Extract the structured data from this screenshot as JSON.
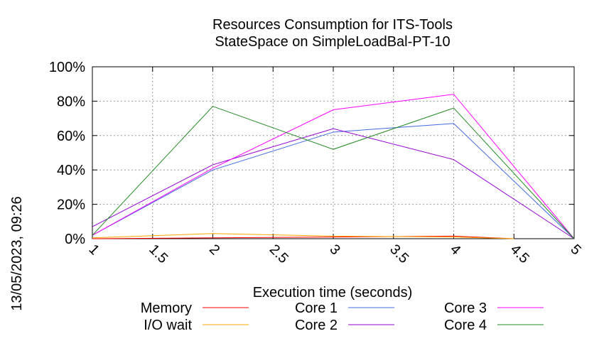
{
  "chart_data": {
    "type": "line",
    "title_lines": [
      "Resources Consumption for ITS-Tools",
      "StateSpace on SimpleLoadBal-PT-10"
    ],
    "xlabel": "Execution time (seconds)",
    "ylabel": "",
    "side_label": "13/05/2023, 09:26",
    "xlim": [
      1,
      5
    ],
    "ylim": [
      0,
      100
    ],
    "x_ticks": [
      {
        "value": 1,
        "label": "1"
      },
      {
        "value": 1.5,
        "label": "1.5"
      },
      {
        "value": 2,
        "label": "2"
      },
      {
        "value": 2.5,
        "label": "2.5"
      },
      {
        "value": 3,
        "label": "3"
      },
      {
        "value": 3.5,
        "label": "3.5"
      },
      {
        "value": 4,
        "label": "4"
      },
      {
        "value": 4.5,
        "label": "4.5"
      },
      {
        "value": 5,
        "label": "5"
      }
    ],
    "y_ticks": [
      {
        "value": 0,
        "label": "0%"
      },
      {
        "value": 20,
        "label": "20%"
      },
      {
        "value": 40,
        "label": "40%"
      },
      {
        "value": 60,
        "label": "60%"
      },
      {
        "value": 80,
        "label": "80%"
      },
      {
        "value": 100,
        "label": "100%"
      }
    ],
    "grid": true,
    "legend_placement": "bottom",
    "series": [
      {
        "name": "Memory",
        "color": "#ff0000",
        "x": [
          1,
          2,
          3,
          4,
          4.5
        ],
        "y": [
          0,
          0.5,
          1,
          1.5,
          0
        ]
      },
      {
        "name": "I/O wait",
        "color": "#ffa500",
        "x": [
          1,
          2,
          3,
          4,
          4.5
        ],
        "y": [
          0.5,
          3,
          1.5,
          1,
          0
        ]
      },
      {
        "name": "Core 1",
        "color": "#4169e1",
        "x": [
          1,
          2,
          3,
          4,
          5
        ],
        "y": [
          2,
          40,
          62,
          67,
          0
        ]
      },
      {
        "name": "Core 2",
        "color": "#9400d3",
        "x": [
          1,
          2,
          3,
          4,
          5
        ],
        "y": [
          7,
          43,
          64,
          46,
          0
        ]
      },
      {
        "name": "Core 3",
        "color": "#ff00ff",
        "x": [
          1,
          2,
          3,
          4,
          5
        ],
        "y": [
          2,
          41,
          75,
          84,
          0
        ]
      },
      {
        "name": "Core 4",
        "color": "#228b22",
        "x": [
          1,
          2,
          3,
          4,
          5
        ],
        "y": [
          2,
          77,
          52,
          76,
          0
        ]
      }
    ]
  }
}
